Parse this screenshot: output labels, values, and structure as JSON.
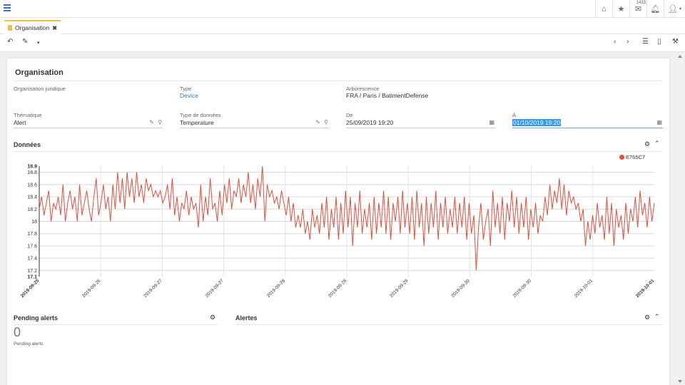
{
  "topbar": {
    "menu_icon": "hamburger-icon",
    "icons": [
      "home-icon",
      "star-icon",
      "envelope-icon",
      "bell-icon",
      "user-icon"
    ],
    "mail_badge": "1433"
  },
  "tab": {
    "label": "Organisation",
    "close": "✖"
  },
  "page": {
    "title": "Organisation"
  },
  "fields": {
    "org_juridique_label": "Organisation juridique",
    "type_label": "Type",
    "type_value": "Device",
    "arbo_label": "Arborescence",
    "arbo_value": "FRA / Paris / BatimentDefense",
    "thematique_label": "Thématique",
    "thematique_value": "Alert",
    "type_donnees_label": "Type de données",
    "type_donnees_value": "Temperature",
    "de_label": "De",
    "de_value": "25/09/2019 19:20",
    "a_label": "À",
    "a_value": "01/10/2019 19:20"
  },
  "sections": {
    "donnees": "Données",
    "pending": "Pending alerts",
    "alertes": "Alertes"
  },
  "pending": {
    "count": "0",
    "label": "Pending alerts"
  },
  "colors": {
    "accent": "#337ab7",
    "series": "#e74c3c",
    "tab_accent": "#f0c040"
  },
  "chart_data": {
    "type": "line",
    "series": [
      {
        "name": "E765C7",
        "values": [
          18.2,
          18.4,
          18.1,
          18.3,
          18.5,
          18.0,
          18.3,
          18.2,
          18.4,
          18.1,
          18.6,
          18.0,
          18.3,
          18.5,
          18.2,
          18.4,
          18.0,
          18.6,
          18.1,
          18.3,
          18.5,
          18.2,
          18.0,
          18.4,
          18.7,
          18.1,
          18.3,
          18.6,
          18.2,
          18.4,
          18.0,
          18.6,
          18.2,
          18.8,
          18.3,
          18.7,
          18.2,
          18.8,
          18.4,
          18.7,
          18.3,
          18.8,
          18.4,
          18.6,
          18.3,
          18.7,
          18.5,
          18.6,
          18.4,
          18.5,
          18.4,
          18.5,
          18.3,
          18.4,
          18.6,
          18.2,
          18.7,
          18.1,
          18.4,
          18.0,
          18.3,
          18.2,
          18.5,
          18.1,
          18.4,
          18.2,
          18.3,
          17.9,
          18.6,
          18.0,
          18.4,
          18.1,
          18.7,
          18.2,
          18.3,
          18.0,
          18.5,
          18.1,
          18.6,
          18.3,
          18.7,
          18.2,
          18.5,
          18.4,
          18.7,
          18.3,
          18.6,
          18.4,
          18.8,
          18.3,
          18.6,
          18.2,
          18.7,
          18.4,
          18.9,
          18.0,
          18.6,
          18.4,
          18.5,
          18.3,
          18.4,
          18.2,
          18.5,
          18.3,
          18.1,
          18.4,
          18.0,
          18.3,
          17.9,
          18.1,
          17.9,
          18.2,
          17.8,
          18.0,
          17.7,
          18.2,
          17.9,
          18.1,
          17.8,
          18.3,
          17.9,
          18.4,
          17.7,
          18.2,
          17.9,
          18.4,
          17.7,
          18.3,
          17.8,
          18.5,
          17.9,
          18.4,
          17.6,
          18.3,
          17.9,
          18.5,
          17.8,
          18.2,
          17.9,
          18.3,
          17.7,
          18.4,
          17.8,
          18.3,
          17.9,
          18.5,
          17.8,
          18.4,
          17.7,
          18.3,
          18.0,
          18.4,
          17.8,
          18.5,
          17.9,
          18.3,
          17.8,
          18.4,
          17.7,
          18.5,
          17.9,
          18.3,
          17.6,
          18.4,
          17.8,
          18.3,
          17.9,
          18.5,
          17.7,
          18.3,
          17.9,
          18.4,
          17.8,
          18.2,
          17.9,
          18.4,
          17.8,
          18.3,
          17.9,
          18.4,
          17.7,
          18.3,
          17.8,
          18.1,
          17.2,
          17.9,
          18.3,
          17.7,
          18.0,
          18.2,
          17.6,
          18.5,
          17.9,
          18.3,
          17.8,
          18.4,
          17.7,
          18.3,
          18.0,
          18.5,
          17.9,
          18.4,
          17.8,
          18.3,
          17.9,
          18.4,
          17.7,
          18.2,
          17.9,
          18.3,
          17.8,
          18.1,
          18.0,
          18.4,
          18.1,
          18.6,
          18.2,
          18.5,
          18.3,
          18.7,
          18.2,
          18.6,
          18.1,
          18.5,
          18.3,
          18.4,
          18.2,
          18.3,
          18.0,
          18.2,
          17.6,
          18.0,
          17.7,
          18.1,
          17.8,
          18.3,
          17.9,
          18.1,
          17.7,
          18.4,
          17.8,
          18.3,
          17.6,
          18.2,
          17.9,
          18.1,
          17.7,
          18.3,
          17.8,
          18.2,
          18.0,
          18.4,
          17.9,
          18.5,
          18.1,
          18.3,
          17.9,
          18.4,
          18.0,
          18.3
        ]
      }
    ],
    "x_tick_labels": [
      "2019-09-25",
      "2019-09-26",
      "2019-09-27",
      "2019-09-27",
      "2019-09-28",
      "2019-09-28",
      "2019-09-29",
      "2019-09-30",
      "2019-09-30",
      "2019-10-01",
      "2019-10-01"
    ],
    "y_tick_labels": [
      "18.9",
      "18.8",
      "18.6",
      "18.4",
      "18.2",
      "18",
      "17.8",
      "17.6",
      "17.4",
      "17.2",
      "17.1"
    ],
    "ylim": [
      17.1,
      18.9
    ],
    "grid": true,
    "legend_position": "top-right"
  }
}
